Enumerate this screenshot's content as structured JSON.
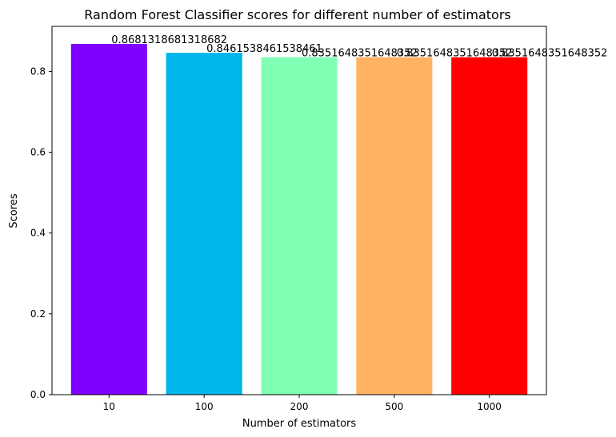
{
  "chart_data": {
    "type": "bar",
    "title": "Random Forest Classifier scores for different number of estimators",
    "xlabel": "Number of estimators",
    "ylabel": "Scores",
    "categories": [
      "10",
      "100",
      "200",
      "500",
      "1000"
    ],
    "values": [
      0.8681318681318682,
      0.8461538461538461,
      0.8351648351648352,
      0.8351648351648352,
      0.8351648351648352
    ],
    "value_labels": [
      "0.8681318681318682",
      "0.8461538461538461",
      "0.8351648351648352",
      "0.8351648351648352",
      "0.8351648351648352"
    ],
    "colors": [
      "#8000ff",
      "#00b5eb",
      "#80ffb4",
      "#ffb360",
      "#ff0000"
    ],
    "ylim": [
      0,
      0.911538
    ],
    "yticks": [
      "0.0",
      "0.2",
      "0.4",
      "0.6",
      "0.8"
    ],
    "ytick_values": [
      0,
      0.2,
      0.4,
      0.6,
      0.8
    ],
    "grid": false,
    "legend": "none"
  }
}
